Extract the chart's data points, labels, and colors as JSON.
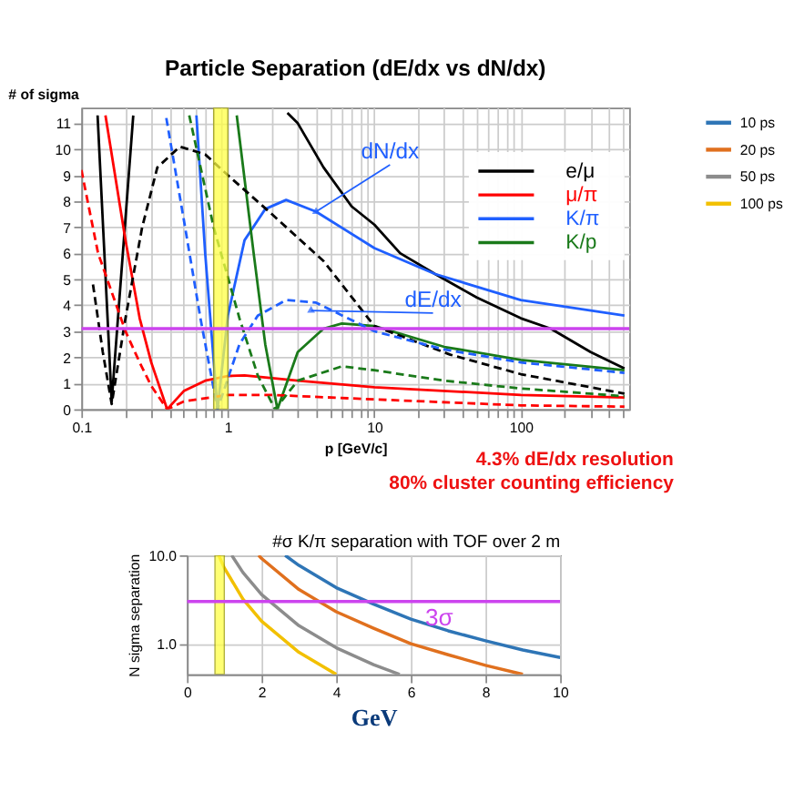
{
  "chart_data": [
    {
      "type": "line",
      "title": "Particle Separation (dE/dx vs dN/dx)",
      "xlabel": "p [GeV/c]",
      "ylabel": "# of sigma",
      "log": "x",
      "grid": true,
      "legend": "top right",
      "xlim": [
        0.1,
        550
      ],
      "ylim": [
        0,
        11.6
      ],
      "xticks": [
        0.1,
        {
          "value": 0.2,
          "label": null
        },
        {
          "value": 0.3,
          "label": null
        },
        {
          "value": 0.4,
          "label": null
        },
        {
          "value": 0.5,
          "label": null
        },
        {
          "value": 0.6,
          "label": null
        },
        {
          "value": 0.7,
          "label": null
        },
        {
          "value": 0.8,
          "label": null
        },
        {
          "value": 0.9,
          "label": null
        },
        1,
        {
          "value": 2,
          "label": null
        },
        {
          "value": 3,
          "label": null
        },
        {
          "value": 4,
          "label": null
        },
        {
          "value": 5,
          "label": null
        },
        {
          "value": 6,
          "label": null
        },
        {
          "value": 7,
          "label": null
        },
        {
          "value": 8,
          "label": null
        },
        {
          "value": 9,
          "label": null
        },
        10,
        {
          "value": 20,
          "label": null
        },
        {
          "value": 30,
          "label": null
        },
        {
          "value": 40,
          "label": null
        },
        {
          "value": 50,
          "label": null
        },
        {
          "value": 60,
          "label": null
        },
        {
          "value": 70,
          "label": null
        },
        {
          "value": 80,
          "label": null
        },
        {
          "value": 90,
          "label": null
        },
        100,
        {
          "value": 200,
          "label": null
        },
        {
          "value": 300,
          "label": null
        },
        {
          "value": 400,
          "label": null
        },
        {
          "value": 500,
          "label": null
        }
      ],
      "yticks": [
        0,
        1,
        2,
        3,
        4,
        5,
        6,
        7,
        8,
        9,
        10,
        11
      ],
      "series": [
        {
          "name": "e/μ",
          "color": "#000000",
          "line_style": "solid",
          "x": [
            0.129,
            0.161,
            0.226,
            null,
            2.55,
            3,
            4.5,
            7,
            10,
            15,
            26,
            50,
            100,
            160,
            300,
            510
          ],
          "values": [
            11.3,
            0.3,
            11.3,
            null,
            11.4,
            11,
            9.3,
            7.8,
            7.1,
            6.0,
            5.2,
            4.3,
            3.5,
            3.1,
            2.2,
            1.57
          ]
        },
        {
          "name": "μ/π",
          "color": "#ff0000",
          "line_style": "solid",
          "x": [
            0.146,
            0.2,
            0.25,
            0.3,
            0.385,
            0.5,
            0.7,
            1,
            1.3,
            3,
            10,
            100,
            510
          ],
          "values": [
            11.3,
            6.5,
            3.5,
            1.8,
            0,
            0.7,
            1.1,
            1.28,
            1.3,
            1.1,
            0.85,
            0.55,
            0.45
          ]
        },
        {
          "name": "K/π",
          "color": "#1f5fff",
          "line_style": "solid",
          "x": [
            0.61,
            0.7,
            0.85,
            1,
            1.3,
            1.8,
            2.5,
            4,
            10,
            26,
            100,
            510
          ],
          "values": [
            11.3,
            6,
            0,
            3.6,
            6.5,
            7.7,
            8.05,
            7.6,
            6.2,
            5.2,
            4.2,
            3.6
          ]
        },
        {
          "name": "K/p",
          "color": "#1a7a1a",
          "line_style": "solid",
          "x": [
            1.15,
            1.5,
            1.8,
            2.18,
            3,
            4.5,
            6,
            10,
            30,
            100,
            510
          ],
          "values": [
            11.3,
            6,
            2.5,
            0,
            2.2,
            3.1,
            3.3,
            3.2,
            2.4,
            1.9,
            1.5
          ]
        },
        {
          "color": "#000000",
          "line_style": "dashed",
          "x": [
            0.12,
            0.14,
            0.161,
            0.2,
            0.26,
            0.33,
            0.47,
            0.7,
            1,
            2,
            4.5,
            10,
            33,
            100,
            510
          ],
          "values": [
            4.8,
            2.2,
            0.2,
            3.5,
            7,
            9.3,
            10.1,
            9.8,
            9.0,
            7.5,
            5.7,
            3.2,
            2.1,
            1.35,
            0.6
          ]
        },
        {
          "color": "#ff0000",
          "line_style": "dashed",
          "x": [
            0.1,
            0.13,
            0.2,
            0.25,
            0.3,
            0.385,
            0.5,
            1,
            2,
            10,
            100,
            510
          ],
          "values": [
            9.2,
            6,
            3,
            1.8,
            0.9,
            0,
            0.3,
            0.55,
            0.55,
            0.38,
            0.15,
            0.1
          ]
        },
        {
          "color": "#1f5fff",
          "line_style": "dashed",
          "x": [
            0.38,
            0.5,
            0.65,
            0.85,
            1.2,
            1.6,
            2.5,
            4,
            10,
            30,
            100,
            510
          ],
          "values": [
            11.2,
            7.3,
            3.5,
            0,
            2.5,
            3.6,
            4.2,
            4.1,
            3.0,
            2.3,
            1.8,
            1.4
          ]
        },
        {
          "color": "#1a7a1a",
          "line_style": "dashed",
          "x": [
            0.545,
            0.8,
            1.2,
            1.6,
            2.1,
            3,
            6,
            10,
            30,
            100,
            510
          ],
          "values": [
            11.3,
            7,
            3.5,
            1.3,
            0,
            1.1,
            1.65,
            1.5,
            1.1,
            0.8,
            0.5
          ]
        }
      ],
      "ref_lines": [
        {
          "axis": "y",
          "value": 3.1,
          "color": "#cc44ee"
        }
      ],
      "bands": [
        {
          "axis": "x",
          "from": 0.8,
          "to": 1.0,
          "color": "#ffff44"
        }
      ],
      "annotations": [
        {
          "text": "dN/dx",
          "x": 4,
          "y": 7.6
        },
        {
          "text": "dE/dx",
          "x": 3.7,
          "y": 3.8
        },
        "4.3% dE/dx resolution",
        "80% cluster counting efficiency"
      ]
    },
    {
      "type": "line",
      "xlabel": "GeV",
      "ylabel": "N sigma separation",
      "log": "y",
      "grid": true,
      "legend": "right",
      "xlim": [
        0,
        10
      ],
      "ylim": [
        0.45,
        10
      ],
      "xticks": [
        0,
        2,
        4,
        6,
        8,
        10
      ],
      "yticks": [
        {
          "value": 1,
          "label": "1.0"
        },
        {
          "value": 10,
          "label": "10.0"
        }
      ],
      "series": [
        {
          "name": "10 ps",
          "color": "#2e75b6",
          "x": [
            2.63,
            3,
            4,
            5,
            6,
            7,
            8,
            9,
            10
          ],
          "values": [
            10,
            7.7,
            4.3,
            2.8,
            1.9,
            1.4,
            1.08,
            0.85,
            0.7
          ]
        },
        {
          "name": "20 ps",
          "color": "#e0701e",
          "x": [
            1.92,
            2,
            3,
            4,
            5,
            6,
            7,
            8,
            9
          ],
          "values": [
            10,
            9.2,
            4.1,
            2.3,
            1.5,
            1.0,
            0.75,
            0.57,
            0.45
          ]
        },
        {
          "name": "50 ps",
          "color": "#8c8c8c",
          "x": [
            1.2,
            1.5,
            2,
            3,
            4,
            5,
            5.7
          ],
          "values": [
            10,
            6.4,
            3.6,
            1.6,
            0.9,
            0.58,
            0.45
          ]
        },
        {
          "name": "100 ps",
          "color": "#f2c000",
          "x": [
            0.85,
            1,
            1.5,
            2,
            3,
            4
          ],
          "values": [
            10,
            7.2,
            3.2,
            1.8,
            0.8,
            0.45
          ]
        }
      ],
      "ref_lines": [
        {
          "axis": "y",
          "value": 3,
          "label": "3σ",
          "color": "#cc44ee"
        }
      ],
      "bands": [
        {
          "axis": "x",
          "from": 0.75,
          "to": 1.0,
          "color": "#ffff44"
        }
      ],
      "annotations": [
        "#σ K/π separation with TOF over 2 m"
      ]
    }
  ]
}
